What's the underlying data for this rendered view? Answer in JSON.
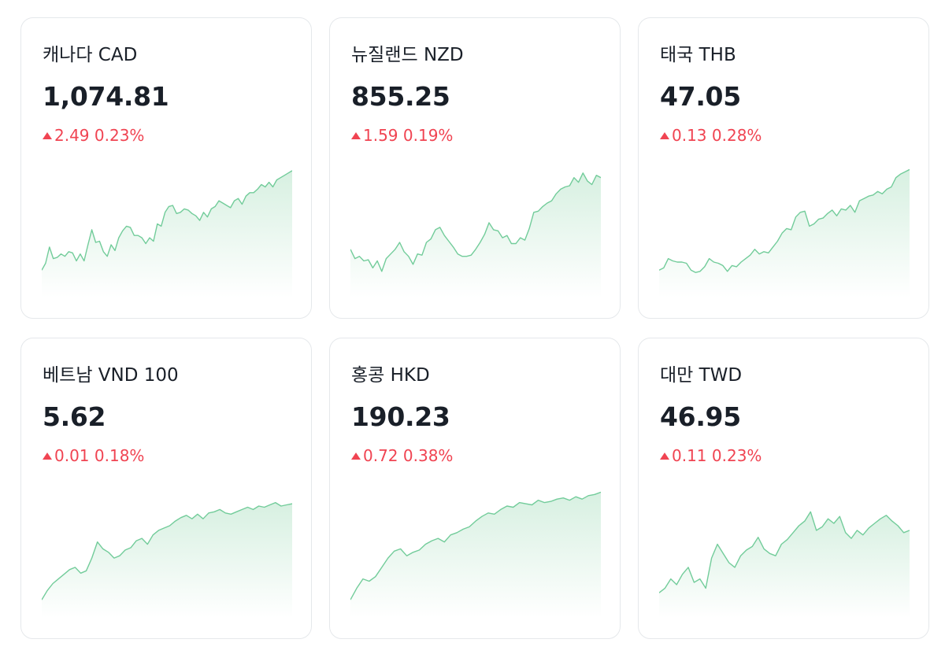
{
  "colors": {
    "up": "#f04452",
    "line": "#72cc9a",
    "fill_top": "#d7f0e1",
    "fill_bottom": "#ffffff"
  },
  "cards": [
    {
      "title": "캐나다 CAD",
      "price": "1,074.81",
      "change": "2.49",
      "percent": "0.23%",
      "direction": "up",
      "series": [
        0.1,
        0.16,
        0.3,
        0.2,
        0.21,
        0.24,
        0.22,
        0.26,
        0.25,
        0.18,
        0.24,
        0.18,
        0.32,
        0.45,
        0.34,
        0.35,
        0.26,
        0.22,
        0.32,
        0.27,
        0.38,
        0.44,
        0.48,
        0.47,
        0.4,
        0.4,
        0.38,
        0.33,
        0.38,
        0.35,
        0.5,
        0.48,
        0.6,
        0.65,
        0.66,
        0.59,
        0.6,
        0.63,
        0.62,
        0.59,
        0.57,
        0.53,
        0.6,
        0.56,
        0.63,
        0.65,
        0.7,
        0.68,
        0.66,
        0.64,
        0.7,
        0.72,
        0.67,
        0.74,
        0.77,
        0.77,
        0.8,
        0.84,
        0.82,
        0.86,
        0.82,
        0.88,
        0.9,
        0.92,
        0.94,
        0.96
      ]
    },
    {
      "title": "뉴질랜드 NZD",
      "price": "855.25",
      "change": "1.59",
      "percent": "0.19%",
      "direction": "up",
      "series": [
        0.28,
        0.2,
        0.22,
        0.18,
        0.19,
        0.12,
        0.18,
        0.09,
        0.2,
        0.24,
        0.28,
        0.34,
        0.26,
        0.22,
        0.15,
        0.24,
        0.23,
        0.34,
        0.37,
        0.45,
        0.47,
        0.4,
        0.35,
        0.3,
        0.24,
        0.22,
        0.22,
        0.23,
        0.28,
        0.34,
        0.41,
        0.51,
        0.45,
        0.44,
        0.38,
        0.4,
        0.33,
        0.33,
        0.38,
        0.36,
        0.46,
        0.6,
        0.61,
        0.65,
        0.68,
        0.7,
        0.76,
        0.8,
        0.82,
        0.83,
        0.9,
        0.86,
        0.94,
        0.87,
        0.84,
        0.92,
        0.9
      ]
    },
    {
      "title": "태국 THB",
      "price": "47.05",
      "change": "0.13",
      "percent": "0.28%",
      "direction": "up",
      "series": [
        0.1,
        0.12,
        0.2,
        0.18,
        0.17,
        0.17,
        0.16,
        0.1,
        0.08,
        0.09,
        0.13,
        0.2,
        0.17,
        0.16,
        0.14,
        0.09,
        0.14,
        0.13,
        0.17,
        0.2,
        0.23,
        0.28,
        0.24,
        0.26,
        0.25,
        0.3,
        0.35,
        0.42,
        0.46,
        0.45,
        0.56,
        0.6,
        0.61,
        0.48,
        0.5,
        0.54,
        0.55,
        0.59,
        0.62,
        0.57,
        0.63,
        0.62,
        0.66,
        0.6,
        0.7,
        0.72,
        0.74,
        0.75,
        0.78,
        0.76,
        0.8,
        0.82,
        0.9,
        0.93,
        0.95,
        0.97
      ]
    },
    {
      "title": "베트남 VND 100",
      "price": "5.62",
      "change": "0.01",
      "percent": "0.18%",
      "direction": "up",
      "series": [
        0.02,
        0.1,
        0.16,
        0.2,
        0.24,
        0.28,
        0.3,
        0.25,
        0.27,
        0.38,
        0.52,
        0.46,
        0.43,
        0.38,
        0.4,
        0.45,
        0.47,
        0.53,
        0.55,
        0.5,
        0.58,
        0.62,
        0.64,
        0.66,
        0.7,
        0.73,
        0.75,
        0.72,
        0.76,
        0.72,
        0.77,
        0.78,
        0.8,
        0.77,
        0.76,
        0.78,
        0.8,
        0.82,
        0.8,
        0.83,
        0.82,
        0.84,
        0.86,
        0.83,
        0.84,
        0.85
      ]
    },
    {
      "title": "홍콩 HKD",
      "price": "190.23",
      "change": "0.72",
      "percent": "0.38%",
      "direction": "up",
      "series": [
        0.02,
        0.12,
        0.2,
        0.18,
        0.22,
        0.3,
        0.38,
        0.44,
        0.46,
        0.4,
        0.43,
        0.45,
        0.5,
        0.53,
        0.55,
        0.52,
        0.58,
        0.6,
        0.63,
        0.65,
        0.7,
        0.74,
        0.77,
        0.76,
        0.8,
        0.83,
        0.82,
        0.86,
        0.85,
        0.84,
        0.88,
        0.86,
        0.87,
        0.89,
        0.9,
        0.88,
        0.91,
        0.89,
        0.92,
        0.93,
        0.95
      ]
    },
    {
      "title": "대만 TWD",
      "price": "46.95",
      "change": "0.11",
      "percent": "0.23%",
      "direction": "up",
      "series": [
        0.08,
        0.12,
        0.2,
        0.15,
        0.24,
        0.3,
        0.17,
        0.2,
        0.12,
        0.38,
        0.5,
        0.42,
        0.34,
        0.3,
        0.4,
        0.45,
        0.48,
        0.56,
        0.46,
        0.42,
        0.4,
        0.5,
        0.54,
        0.6,
        0.66,
        0.7,
        0.78,
        0.62,
        0.65,
        0.72,
        0.68,
        0.74,
        0.6,
        0.55,
        0.62,
        0.58,
        0.64,
        0.68,
        0.72,
        0.75,
        0.7,
        0.66,
        0.6,
        0.62
      ]
    }
  ]
}
